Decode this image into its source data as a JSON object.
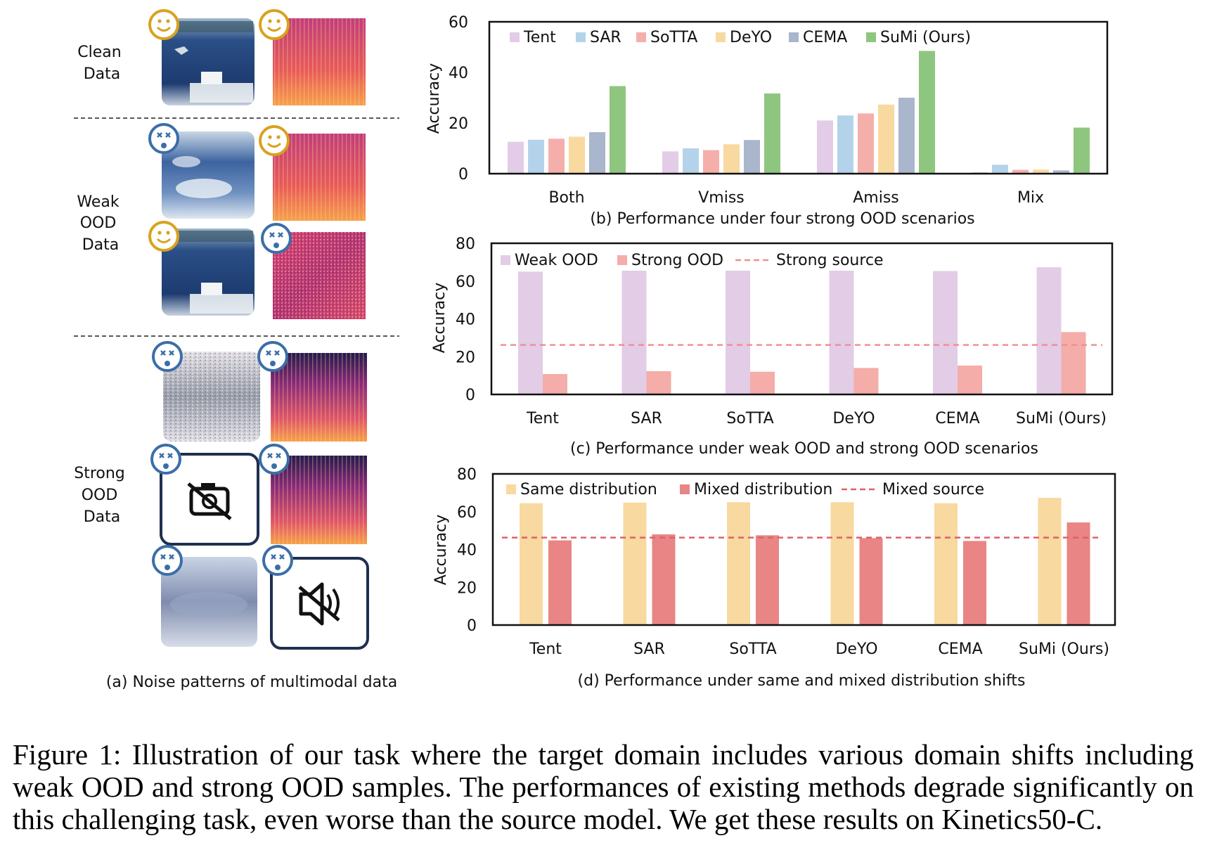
{
  "panel_a": {
    "rows": {
      "clean": [
        "Clean",
        "Data"
      ],
      "weak": [
        "Weak",
        "OOD",
        "Data"
      ],
      "strong": [
        "Strong",
        "OOD",
        "Data"
      ]
    },
    "caption": "(a) Noise patterns of multimodal data"
  },
  "colors": {
    "tent": "#E3CCE8",
    "sar": "#B4D3EA",
    "sotta": "#F5AFAB",
    "deyo": "#F8D9A0",
    "cema": "#A9B6CB",
    "sumi": "#8FC67F",
    "weak": "#E2CCE6",
    "strong": "#F4ADA8",
    "same": "#F8D9A0",
    "mixed": "#E98584",
    "refline": "#F09090",
    "refline2": "#E0606A"
  },
  "chart_data": [
    {
      "type": "bar",
      "ylabel": "Accuracy",
      "ylim": [
        0,
        60
      ],
      "yticks": [
        "0",
        "20",
        "40",
        "60"
      ],
      "categories": [
        "Both",
        "Vmiss",
        "Amiss",
        "Mix"
      ],
      "series": [
        {
          "name": "Tent",
          "values": [
            12.6,
            8.8,
            21.0,
            0.6
          ]
        },
        {
          "name": "SAR",
          "values": [
            13.4,
            10.0,
            23.0,
            3.5
          ]
        },
        {
          "name": "SoTTA",
          "values": [
            13.8,
            9.3,
            23.8,
            1.5
          ]
        },
        {
          "name": "DeYO",
          "values": [
            14.6,
            11.6,
            27.3,
            1.6
          ]
        },
        {
          "name": "CEMA",
          "values": [
            16.4,
            13.3,
            30.0,
            1.3
          ]
        },
        {
          "name": "SuMi (Ours)",
          "values": [
            34.6,
            31.7,
            48.5,
            18.2
          ]
        }
      ],
      "legend": "top",
      "caption": "(b) Performance under four strong OOD scenarios"
    },
    {
      "type": "bar",
      "ylabel": "Accuracy",
      "ylim": [
        0,
        80
      ],
      "yticks": [
        "0",
        "20",
        "40",
        "60",
        "80"
      ],
      "categories": [
        "Tent",
        "SAR",
        "SoTTA",
        "DeYO",
        "CEMA",
        "SuMi (Ours)"
      ],
      "series": [
        {
          "name": "Weak OOD",
          "values": [
            65.0,
            65.5,
            65.5,
            65.5,
            65.3,
            67.3
          ]
        },
        {
          "name": "Strong OOD",
          "values": [
            10.8,
            12.3,
            12.0,
            14.0,
            15.3,
            33.0
          ]
        }
      ],
      "reference_line": {
        "name": "Strong source",
        "value": 26.2
      },
      "legend": "top",
      "caption": "(c) Performance under weak OOD and strong OOD scenarios"
    },
    {
      "type": "bar",
      "ylabel": "Accuracy",
      "ylim": [
        0,
        80
      ],
      "yticks": [
        "0",
        "20",
        "40",
        "60",
        "80"
      ],
      "categories": [
        "Tent",
        "SAR",
        "SoTTA",
        "DeYO",
        "CEMA",
        "SuMi (Ours)"
      ],
      "series": [
        {
          "name": "Same distribution",
          "values": [
            64.5,
            64.8,
            65.0,
            65.0,
            64.5,
            67.3
          ]
        },
        {
          "name": "Mixed distribution",
          "values": [
            44.8,
            48.0,
            47.5,
            46.0,
            44.5,
            54.3
          ]
        }
      ],
      "reference_line": {
        "name": "Mixed source",
        "value": 46.3
      },
      "legend": "top",
      "caption": "(d) Performance under same and mixed distribution shifts"
    }
  ],
  "figure_caption": "Figure 1: Illustration of our task where the target domain includes various domain shifts including weak OOD and strong OOD samples. The performances of existing methods degrade significantly on this challenging task, even worse than the source model. We get these results on Kinetics50-C."
}
